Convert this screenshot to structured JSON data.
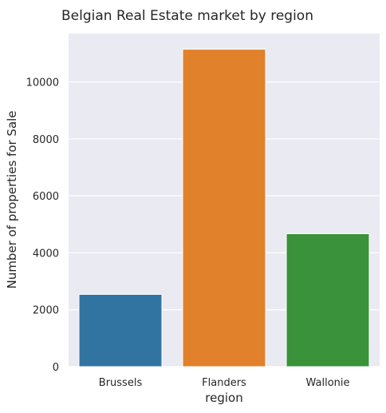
{
  "chart_data": {
    "type": "bar",
    "title": "Belgian Real Estate market by region",
    "xlabel": "region",
    "ylabel": "Number of properties for Sale",
    "categories": [
      "Brussels",
      "Flanders",
      "Wallonie"
    ],
    "values": [
      2540,
      11150,
      4670
    ],
    "colors": [
      "#3274a1",
      "#e1812c",
      "#3a923a"
    ],
    "ylim": [
      0,
      11700
    ],
    "yticks": [
      0,
      2000,
      4000,
      6000,
      8000,
      10000
    ],
    "grid": true,
    "background": "#eaeaf2"
  }
}
